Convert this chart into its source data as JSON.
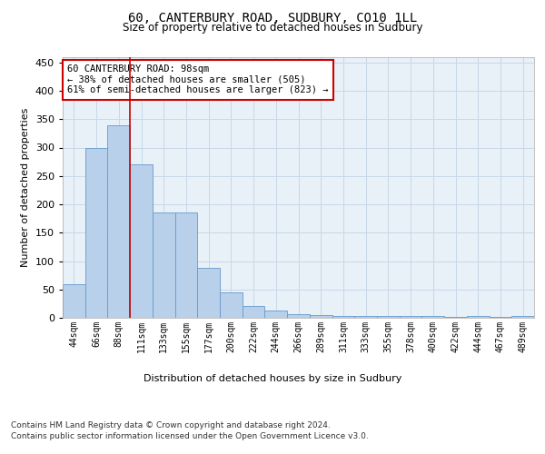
{
  "title": "60, CANTERBURY ROAD, SUDBURY, CO10 1LL",
  "subtitle": "Size of property relative to detached houses in Sudbury",
  "xlabel": "Distribution of detached houses by size in Sudbury",
  "ylabel": "Number of detached properties",
  "bar_labels": [
    "44sqm",
    "66sqm",
    "88sqm",
    "111sqm",
    "133sqm",
    "155sqm",
    "177sqm",
    "200sqm",
    "222sqm",
    "244sqm",
    "266sqm",
    "289sqm",
    "311sqm",
    "333sqm",
    "355sqm",
    "378sqm",
    "400sqm",
    "422sqm",
    "444sqm",
    "467sqm",
    "489sqm"
  ],
  "bar_values": [
    60,
    300,
    340,
    270,
    185,
    185,
    88,
    45,
    21,
    13,
    7,
    5,
    3,
    4,
    4,
    4,
    3,
    1,
    3,
    2,
    3
  ],
  "bar_color": "#b8d0ea",
  "bar_edge_color": "#6699cc",
  "grid_color": "#c8d8e8",
  "background_color": "#e8f0f8",
  "annotation_box_text": "60 CANTERBURY ROAD: 98sqm\n← 38% of detached houses are smaller (505)\n61% of semi-detached houses are larger (823) →",
  "annotation_box_color": "#ffffff",
  "annotation_box_edge_color": "#cc0000",
  "red_line_x": 2.5,
  "ylim": [
    0,
    460
  ],
  "yticks": [
    0,
    50,
    100,
    150,
    200,
    250,
    300,
    350,
    400,
    450
  ],
  "footer_line1": "Contains HM Land Registry data © Crown copyright and database right 2024.",
  "footer_line2": "Contains public sector information licensed under the Open Government Licence v3.0."
}
